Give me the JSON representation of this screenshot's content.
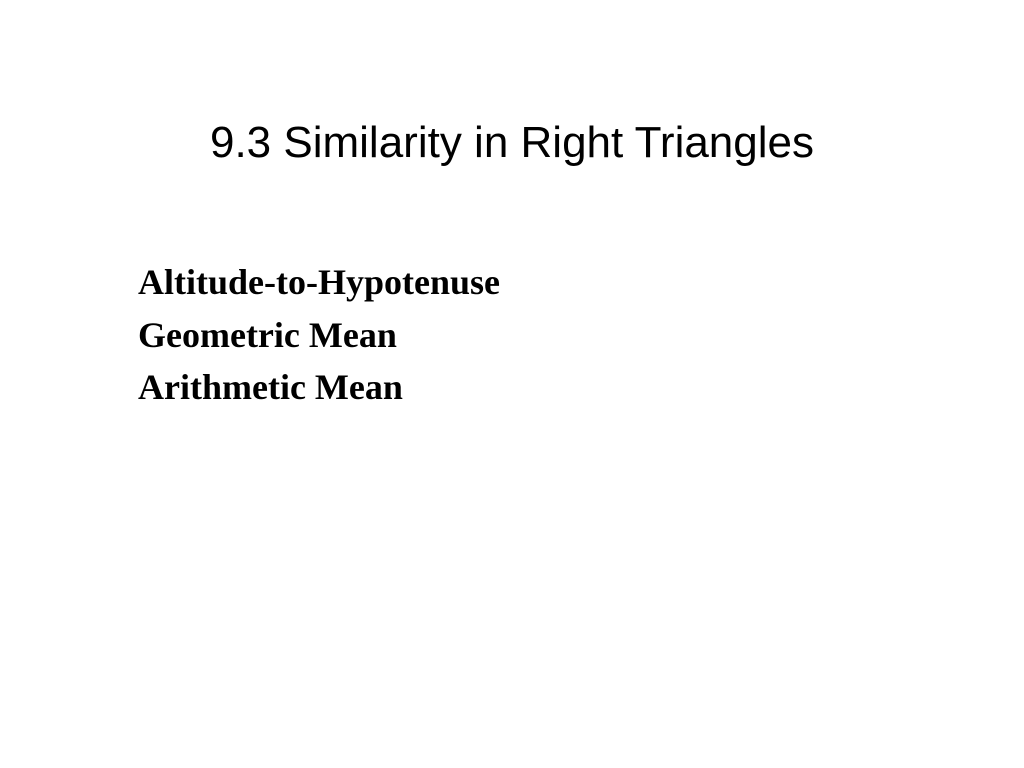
{
  "slide": {
    "title": "9.3 Similarity in Right Triangles",
    "items": [
      "Altitude-to-Hypotenuse",
      "Geometric Mean",
      "Arithmetic Mean"
    ],
    "styling": {
      "background_color": "#ffffff",
      "title_font_family": "Arial",
      "title_font_size": 44,
      "title_font_weight": 400,
      "title_color": "#000000",
      "item_font_family": "Times New Roman",
      "item_font_size": 36,
      "item_font_weight": 700,
      "item_color": "#000000",
      "item_line_height": 1.35
    }
  }
}
